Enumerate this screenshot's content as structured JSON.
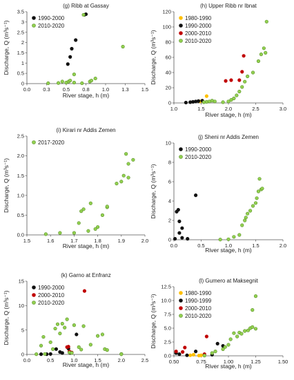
{
  "chart_data": [
    {
      "type": "scatter",
      "title": "(g) Ribb at Gassay",
      "xlabel": "River stage, h (m)",
      "ylabel": "Discharge, Q (m³s⁻¹)",
      "xlim": [
        0,
        1.5
      ],
      "ylim": [
        0,
        3.5
      ],
      "xticks": [
        "0.0",
        "0.3",
        "0.5",
        "0.8",
        "1.0",
        "1.3",
        "1.5"
      ],
      "yticks": [
        "0",
        "0.5",
        "1",
        "1.5",
        "2",
        "2.5",
        "3",
        "3.5"
      ],
      "legend_position": "top-left",
      "series": [
        {
          "name": "1990-2000",
          "color": "#111111",
          "points": [
            [
              0.52,
              0.95
            ],
            [
              0.55,
              1.3
            ],
            [
              0.57,
              1.7
            ],
            [
              0.62,
              2.12
            ],
            [
              0.73,
              3.35
            ],
            [
              0.75,
              3.38
            ]
          ]
        },
        {
          "name": "2010-2020",
          "color": "#92d050",
          "points": [
            [
              0.27,
              0.02
            ],
            [
              0.4,
              0.03
            ],
            [
              0.45,
              0.1
            ],
            [
              0.5,
              0.05
            ],
            [
              0.53,
              0.1
            ],
            [
              0.55,
              0.15
            ],
            [
              0.6,
              0.45
            ],
            [
              0.6,
              0.05
            ],
            [
              0.7,
              0.02
            ],
            [
              0.72,
              3.35
            ],
            [
              0.8,
              0.1
            ],
            [
              0.82,
              0.15
            ],
            [
              0.87,
              0.25
            ],
            [
              1.22,
              1.8
            ]
          ]
        }
      ]
    },
    {
      "type": "scatter",
      "title": "(h) Upper Ribb nr Ibnat",
      "xlabel": "River stage, h (m)",
      "ylabel": "Discharge, Q (m³s⁻¹)",
      "xlim": [
        1.0,
        3.0
      ],
      "ylim": [
        0,
        120
      ],
      "xticks": [
        "1.0",
        "1.5",
        "2.0",
        "2.5",
        "3.0"
      ],
      "yticks": [
        "0",
        "20",
        "40",
        "60",
        "80",
        "100",
        "120"
      ],
      "legend_position": "top-left",
      "series": [
        {
          "name": "1980-1990",
          "color": "#ffc000",
          "points": [
            [
              1.48,
              2
            ],
            [
              1.6,
              9
            ]
          ]
        },
        {
          "name": "1990-2000",
          "color": "#111111",
          "points": [
            [
              1.22,
              0.5
            ],
            [
              1.3,
              1
            ],
            [
              1.35,
              1.5
            ],
            [
              1.4,
              2
            ],
            [
              1.45,
              2.5
            ],
            [
              1.52,
              3
            ]
          ]
        },
        {
          "name": "2000-2010",
          "color": "#c00000",
          "points": [
            [
              1.95,
              29
            ],
            [
              2.05,
              30
            ],
            [
              2.2,
              30
            ],
            [
              2.25,
              41
            ],
            [
              2.28,
              62
            ]
          ]
        },
        {
          "name": "2010-2020",
          "color": "#92d050",
          "points": [
            [
              1.55,
              1
            ],
            [
              1.6,
              1.5
            ],
            [
              1.65,
              2
            ],
            [
              1.7,
              3
            ],
            [
              1.75,
              2
            ],
            [
              1.9,
              1
            ],
            [
              2.0,
              2
            ],
            [
              2.05,
              4
            ],
            [
              2.1,
              6
            ],
            [
              2.15,
              10
            ],
            [
              2.2,
              15
            ],
            [
              2.25,
              21
            ],
            [
              2.3,
              28
            ],
            [
              2.35,
              35
            ],
            [
              2.45,
              40
            ],
            [
              2.55,
              55
            ],
            [
              2.6,
              64
            ],
            [
              2.65,
              72
            ],
            [
              2.68,
              66
            ],
            [
              2.7,
              107
            ]
          ]
        }
      ]
    },
    {
      "type": "scatter",
      "title": "(i) Kirari nr Addis Zemen",
      "xlabel": "River stage, h (m)",
      "ylabel": "Discharge, Q (m³s⁻¹)",
      "xlim": [
        1.5,
        2.0
      ],
      "ylim": [
        0,
        2.5
      ],
      "xticks": [
        "1.5",
        "1.6",
        "1.7",
        "1.8",
        "1.9",
        "2.0"
      ],
      "yticks": [
        "0.0",
        "0.5",
        "1.0",
        "1.5",
        "2.0",
        "2.5"
      ],
      "legend_position": "top-left",
      "series": [
        {
          "name": "2017-2020",
          "color": "#92d050",
          "points": [
            [
              1.58,
              0.02
            ],
            [
              1.64,
              0.05
            ],
            [
              1.7,
              0.05
            ],
            [
              1.72,
              0.3
            ],
            [
              1.73,
              0.6
            ],
            [
              1.74,
              0.65
            ],
            [
              1.76,
              0.1
            ],
            [
              1.77,
              0.8
            ],
            [
              1.79,
              0.15
            ],
            [
              1.8,
              0.2
            ],
            [
              1.82,
              0.5
            ],
            [
              1.84,
              0.7
            ],
            [
              1.84,
              0.72
            ],
            [
              1.88,
              1.3
            ],
            [
              1.9,
              1.35
            ],
            [
              1.91,
              1.5
            ],
            [
              1.93,
              1.45
            ],
            [
              1.92,
              2.05
            ],
            [
              1.93,
              1.8
            ],
            [
              1.95,
              1.9
            ]
          ]
        }
      ]
    },
    {
      "type": "scatter",
      "title": "(j) Sheni nr Addis Zemen",
      "xlabel": "River stage, h (m)",
      "ylabel": "Discharge, Q (m³s⁻¹)",
      "xlim": [
        0,
        2.0
      ],
      "ylim": [
        0,
        10
      ],
      "xticks": [
        "0.0",
        "0.5",
        "1.0",
        "1.5",
        "2.0"
      ],
      "yticks": [
        "0",
        "2",
        "4",
        "6",
        "8",
        "10"
      ],
      "legend_position": "top-left",
      "series": [
        {
          "name": "1990-2000",
          "color": "#111111",
          "points": [
            [
              0.02,
              0.1
            ],
            [
              0.05,
              2.9
            ],
            [
              0.08,
              3.1
            ],
            [
              0.1,
              1.9
            ],
            [
              0.1,
              0.7
            ],
            [
              0.15,
              1.2
            ],
            [
              0.15,
              0.2
            ],
            [
              0.4,
              4.6
            ],
            [
              0.25,
              0.1
            ]
          ]
        },
        {
          "name": "2010-2020",
          "color": "#92d050",
          "points": [
            [
              0.85,
              0.02
            ],
            [
              1.0,
              0.05
            ],
            [
              1.1,
              0.3
            ],
            [
              1.2,
              0.5
            ],
            [
              1.25,
              1.5
            ],
            [
              1.3,
              2.0
            ],
            [
              1.32,
              2.3
            ],
            [
              1.35,
              2.7
            ],
            [
              1.4,
              3.0
            ],
            [
              1.45,
              3.5
            ],
            [
              1.5,
              3.8
            ],
            [
              1.52,
              4.3
            ],
            [
              1.55,
              5.0
            ],
            [
              1.57,
              6.3
            ],
            [
              1.6,
              5.2
            ],
            [
              1.62,
              5.3
            ]
          ]
        }
      ]
    },
    {
      "type": "scatter",
      "title": "(k) Garno at Enfranz",
      "xlabel": "River stage, h (m)",
      "ylabel": "Discharge, Q (m³s⁻¹)",
      "xlim": [
        0,
        2.5
      ],
      "ylim": [
        0,
        15
      ],
      "xticks": [
        "0.0",
        "0.5",
        "1.0",
        "1.5",
        "2.0",
        "2.5"
      ],
      "yticks": [
        "0",
        "5",
        "10",
        "15"
      ],
      "legend_position": "top-left",
      "series": [
        {
          "name": "1990-2000",
          "color": "#111111",
          "points": [
            [
              0.3,
              0.05
            ],
            [
              0.42,
              0.05
            ],
            [
              0.5,
              0.1
            ],
            [
              0.62,
              1.1
            ],
            [
              0.7,
              0.5
            ],
            [
              0.75,
              0.3
            ],
            [
              0.88,
              1.2
            ],
            [
              0.92,
              0.3
            ],
            [
              1.05,
              4.1
            ]
          ]
        },
        {
          "name": "2000-2010",
          "color": "#c00000",
          "points": [
            [
              0.85,
              1.5
            ],
            [
              0.88,
              1.6
            ],
            [
              0.9,
              0.6
            ],
            [
              0.95,
              0.4
            ],
            [
              1.22,
              13.0
            ]
          ]
        },
        {
          "name": "2010-2020",
          "color": "#92d050",
          "points": [
            [
              0.2,
              0.05
            ],
            [
              0.3,
              1.8
            ],
            [
              0.35,
              3.6
            ],
            [
              0.38,
              0.1
            ],
            [
              0.5,
              2.5
            ],
            [
              0.55,
              1.1
            ],
            [
              0.6,
              5.3
            ],
            [
              0.65,
              6.2
            ],
            [
              0.7,
              4.3
            ],
            [
              0.75,
              6.3
            ],
            [
              0.8,
              5.5
            ],
            [
              0.85,
              7.2
            ],
            [
              0.9,
              0.4
            ],
            [
              0.95,
              0.3
            ],
            [
              1.0,
              6.0
            ],
            [
              1.1,
              1.5
            ],
            [
              1.15,
              1.0
            ],
            [
              1.2,
              5.8
            ],
            [
              1.35,
              2.0
            ],
            [
              1.5,
              3.8
            ],
            [
              1.6,
              4.1
            ],
            [
              1.65,
              1.1
            ],
            [
              1.7,
              0.9
            ],
            [
              2.0,
              0.1
            ],
            [
              2.0,
              0.05
            ]
          ]
        }
      ]
    },
    {
      "type": "scatter",
      "title": "(l) Gumero at Maksegnit",
      "xlabel": "River stage, h (m)",
      "ylabel": "Discharge, Q (m³s⁻¹)",
      "xlim": [
        0.5,
        1.5
      ],
      "ylim": [
        0,
        12.5
      ],
      "xticks": [
        "0.50",
        "0.75",
        "1.00",
        "1.25",
        "1.50"
      ],
      "yticks": [
        "0.0",
        "2.5",
        "5.0",
        "7.5",
        "10.0",
        "12.5"
      ],
      "legend_position": "top-left",
      "series": [
        {
          "name": "1980-1990",
          "color": "#ffc000",
          "points": [
            [
              0.65,
              0.1
            ],
            [
              0.68,
              0.2
            ],
            [
              0.73,
              0.05
            ],
            [
              0.75,
              0.1
            ]
          ]
        },
        {
          "name": "1990-1999",
          "color": "#111111",
          "points": [
            [
              0.52,
              0.5
            ],
            [
              0.55,
              0.3
            ],
            [
              0.62,
              0.1
            ],
            [
              0.7,
              0.8
            ],
            [
              0.85,
              0.2
            ],
            [
              0.9,
              2.2
            ],
            [
              0.95,
              1.8
            ]
          ]
        },
        {
          "name": "2000-2010",
          "color": "#c00000",
          "points": [
            [
              0.52,
              0.8
            ],
            [
              0.58,
              0.7
            ],
            [
              0.6,
              1.5
            ],
            [
              0.78,
              0.3
            ],
            [
              0.8,
              3.5
            ]
          ]
        },
        {
          "name": "2010-2020",
          "color": "#92d050",
          "points": [
            [
              0.78,
              0.05
            ],
            [
              0.85,
              0.5
            ],
            [
              0.88,
              0.8
            ],
            [
              0.95,
              1.2
            ],
            [
              0.97,
              1.6
            ],
            [
              1.0,
              2.0
            ],
            [
              1.02,
              3.0
            ],
            [
              1.05,
              4.1
            ],
            [
              1.08,
              3.5
            ],
            [
              1.1,
              4.2
            ],
            [
              1.12,
              4.0
            ],
            [
              1.15,
              4.5
            ],
            [
              1.18,
              4.6
            ],
            [
              1.2,
              5.0
            ],
            [
              1.22,
              8.3
            ],
            [
              1.25,
              10.8
            ],
            [
              1.22,
              5.2
            ],
            [
              1.25,
              4.9
            ]
          ]
        }
      ]
    }
  ]
}
